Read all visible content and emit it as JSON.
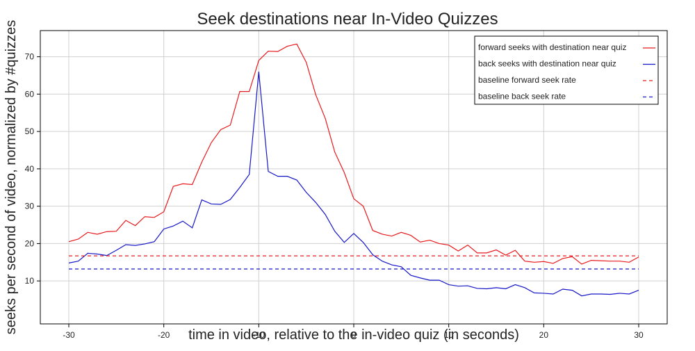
{
  "chart_data": {
    "type": "line",
    "title": "Seek destinations near In-Video Quizzes",
    "xlabel": "time in video, relative to the in-video quiz (in seconds)",
    "ylabel": "seeks per second of video, normalized by #quizzes",
    "x": [
      -30,
      -29,
      -28,
      -27,
      -26,
      -25,
      -24,
      -23,
      -22,
      -21,
      -20,
      -19,
      -18,
      -17,
      -16,
      -15,
      -14,
      -13,
      -12,
      -11,
      -10,
      -9,
      -8,
      -7,
      -6,
      -5,
      -4,
      -3,
      -2,
      -1,
      0,
      1,
      2,
      3,
      4,
      5,
      6,
      7,
      8,
      9,
      10,
      11,
      12,
      13,
      14,
      15,
      16,
      17,
      18,
      19,
      20,
      21,
      22,
      23,
      24,
      25,
      26,
      27,
      28,
      29,
      30
    ],
    "series": [
      {
        "name": "forward seeks with destination near quiz",
        "color": "#e8191c",
        "values": [
          20.5,
          21.2,
          23,
          22.5,
          23.2,
          23.3,
          26.2,
          24.8,
          27.2,
          27,
          28.5,
          35.3,
          36,
          35.8,
          41.8,
          47,
          50.5,
          51.7,
          60.7,
          60.7,
          69,
          71.5,
          71.4,
          72.8,
          73.4,
          68.5,
          59.8,
          53.5,
          44.5,
          39,
          32,
          30,
          23.5,
          22.5,
          22,
          23,
          22.2,
          20.4,
          20.9,
          20,
          19.6,
          18,
          19.6,
          17.5,
          17.5,
          18.3,
          16.9,
          18.2,
          15.3,
          15,
          15.2,
          14.7,
          16,
          16.5,
          14.5,
          15.5,
          15.4,
          15.3,
          15.3,
          15,
          16.4
        ]
      },
      {
        "name": "back seeks with destination near quiz",
        "color": "#1515c8",
        "values": [
          14.8,
          15.3,
          17.4,
          17.2,
          16.8,
          18.2,
          19.7,
          19.5,
          19.9,
          20.5,
          23.9,
          24.7,
          26,
          24.2,
          31.7,
          30.6,
          30.5,
          31.8,
          35,
          38.5,
          66,
          39.3,
          38,
          38,
          37,
          33.7,
          31,
          27.8,
          23.3,
          20.3,
          22.7,
          20.3,
          17,
          15.3,
          14.3,
          13.8,
          11.5,
          10.8,
          10.2,
          10.2,
          9,
          8.6,
          8.7,
          8,
          7.9,
          8.2,
          7.9,
          9,
          8.2,
          6.8,
          6.7,
          6.5,
          7.8,
          7.5,
          6,
          6.5,
          6.5,
          6.4,
          6.7,
          6.5,
          7.5
        ]
      },
      {
        "name": "baseline forward seek rate",
        "color": "#e8191c",
        "dashed": true,
        "x": [
          -30,
          30
        ],
        "values": [
          16.7,
          16.7
        ]
      },
      {
        "name": "baseline back seek rate",
        "color": "#1515c8",
        "dashed": true,
        "x": [
          -30,
          30
        ],
        "values": [
          13.2,
          13.2
        ]
      }
    ],
    "xlim": [
      -33,
      33
    ],
    "xticks": [
      -30,
      -20,
      -10,
      0,
      10,
      20,
      30
    ],
    "ylim": [
      -1.5,
      77
    ],
    "yticks": [
      10,
      20,
      30,
      40,
      50,
      60,
      70
    ],
    "grid": true,
    "legend": "upper right"
  }
}
